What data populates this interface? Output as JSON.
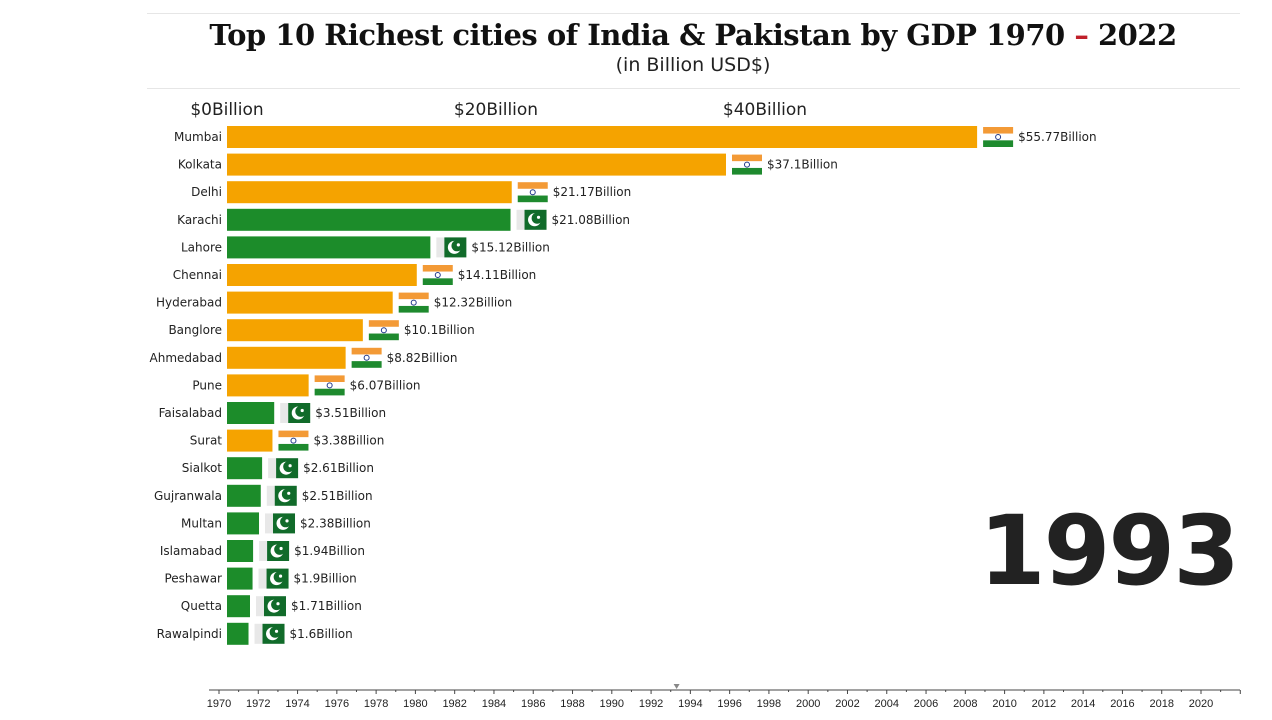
{
  "title_main": "Top 10 Richest cities of India & Pakistan by GDP 1970",
  "title_dash": "–",
  "title_end": "2022",
  "subtitle": "(in Billion USD$)",
  "current_year": "1993",
  "colors": {
    "India": "#f5a300",
    "Pakistan": "#1c8c2a"
  },
  "chart_data": {
    "type": "bar",
    "orientation": "horizontal",
    "title": "Top 10 Richest cities of India & Pakistan by GDP 1970 – 2022",
    "subtitle": "(in Billion USD$)",
    "xlim": [
      0,
      56
    ],
    "xticks": [
      0,
      20,
      40
    ],
    "xtick_labels": [
      "$0Billion",
      "$20Billion",
      "$40Billion"
    ],
    "tick_position": "top",
    "categories": [
      "Mumbai",
      "Kolkata",
      "Delhi",
      "Karachi",
      "Lahore",
      "Chennai",
      "Hyderabad",
      "Banglore",
      "Ahmedabad",
      "Pune",
      "Faisalabad",
      "Surat",
      "Sialkot",
      "Gujranwala",
      "Multan",
      "Islamabad",
      "Peshawar",
      "Quetta",
      "Rawalpindi"
    ],
    "values": [
      55.77,
      37.1,
      21.17,
      21.08,
      15.12,
      14.11,
      12.32,
      10.1,
      8.82,
      6.07,
      3.51,
      3.38,
      2.61,
      2.51,
      2.38,
      1.94,
      1.9,
      1.71,
      1.6
    ],
    "countries": [
      "India",
      "India",
      "India",
      "Pakistan",
      "Pakistan",
      "India",
      "India",
      "India",
      "India",
      "India",
      "Pakistan",
      "India",
      "Pakistan",
      "Pakistan",
      "Pakistan",
      "Pakistan",
      "Pakistan",
      "Pakistan",
      "Pakistan"
    ],
    "value_labels": [
      "$55.77Billion",
      "$37.1Billion",
      "$21.17Billion",
      "$21.08Billion",
      "$15.12Billion",
      "$14.11Billion",
      "$12.32Billion",
      "$10.1Billion",
      "$8.82Billion",
      "$6.07Billion",
      "$3.51Billion",
      "$3.38Billion",
      "$2.61Billion",
      "$2.51Billion",
      "$2.38Billion",
      "$1.94Billion",
      "$1.9Billion",
      "$1.71Billion",
      "$1.6Billion"
    ],
    "timeline": {
      "range": [
        1970,
        2022
      ],
      "tick_labels": [
        "1970",
        "1972",
        "1974",
        "1976",
        "1978",
        "1980",
        "1982",
        "1984",
        "1986",
        "1988",
        "1990",
        "1992",
        "1994",
        "1996",
        "1998",
        "2000",
        "2002",
        "2004",
        "2006",
        "2008",
        "2010",
        "2012",
        "2014",
        "2016",
        "2018",
        "2020"
      ],
      "current": 1993.3
    }
  }
}
